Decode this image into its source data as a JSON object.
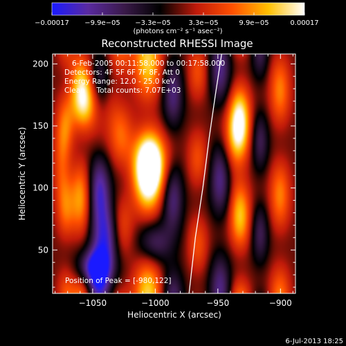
{
  "chart_data": {
    "type": "heatmap",
    "title": "Reconstructed RHESSI Image",
    "xlabel": "Heliocentric X (arcsec)",
    "ylabel": "Heliocentric Y (arcsec)",
    "xlim": [
      -1082,
      -888
    ],
    "ylim": [
      15,
      208
    ],
    "xticks": [
      -1050,
      -1000,
      -950,
      -900
    ],
    "xtick_labels": [
      "−1050",
      "−1000",
      "−950",
      "−900"
    ],
    "yticks": [
      50,
      100,
      150,
      200
    ],
    "ytick_labels": [
      "50",
      "100",
      "150",
      "200"
    ],
    "colorbar": {
      "min": -0.00017,
      "max": 0.00017,
      "tick_labels": [
        "−0.00017",
        "−9.9e−05",
        "−3.3e−05",
        "3.3e−05",
        "9.9e−05",
        "0.00017"
      ],
      "unit_label": "(photons cm⁻² s⁻¹ asec⁻²)",
      "colors": [
        "#1a1aff",
        "#5a2aa0",
        "#3a1a4a",
        "#000000",
        "#c01a0a",
        "#ff5000",
        "#ffc000",
        "#ffffff"
      ]
    },
    "info_lines": [
      "6-Feb-2005 00:11:58.000 to 00:17:58.000",
      "Detectors: 4F 5F 6F 7F 8F, Att 0",
      "Energy Range: 12.0 - 25.0 keV",
      "Clean     Total counts: 7.07E+03"
    ],
    "peak_label": "Position of Peak = [-980,122]",
    "peak": [
      -980,
      122
    ],
    "limb_curve": [
      [
        -973,
        15
      ],
      [
        -968,
        60
      ],
      [
        -962,
        100
      ],
      [
        -957,
        140
      ],
      [
        -952,
        175
      ],
      [
        -947,
        208
      ]
    ],
    "stripes": [
      {
        "x": -1072,
        "sx": 5,
        "amp": 0.45,
        "phase": 0.5,
        "period": 70
      },
      {
        "x": -1060,
        "sx": 6,
        "amp": 0.75,
        "phase": 1.5,
        "period": 90
      },
      {
        "x": -1045,
        "sx": 6,
        "amp": -0.85,
        "phase": 0.0,
        "period": 80
      },
      {
        "x": -1028,
        "sx": 7,
        "amp": 0.55,
        "phase": 2.2,
        "period": 75
      },
      {
        "x": -1006,
        "sx": 8,
        "amp": 0.95,
        "phase": 0.7,
        "period": 95
      },
      {
        "x": -986,
        "sx": 6,
        "amp": -0.7,
        "phase": 1.1,
        "period": 85
      },
      {
        "x": -966,
        "sx": 6,
        "amp": 0.45,
        "phase": 3.0,
        "period": 70
      },
      {
        "x": -948,
        "sx": 6,
        "amp": -0.75,
        "phase": 0.4,
        "period": 90
      },
      {
        "x": -932,
        "sx": 6,
        "amp": 0.9,
        "phase": 1.8,
        "period": 80
      },
      {
        "x": -916,
        "sx": 5,
        "amp": -0.55,
        "phase": 2.6,
        "period": 75
      },
      {
        "x": -900,
        "sx": 6,
        "amp": 0.65,
        "phase": 0.9,
        "period": 85
      }
    ],
    "blobs": [
      {
        "x": -1004,
        "y": 120,
        "sx": 9,
        "sy": 18,
        "amp": 1.2
      },
      {
        "x": -1050,
        "y": 170,
        "sx": 10,
        "sy": 16,
        "amp": 0.9
      },
      {
        "x": -1040,
        "y": 60,
        "sx": 8,
        "sy": 20,
        "amp": -1.1
      },
      {
        "x": -1050,
        "y": 35,
        "sx": 9,
        "sy": 10,
        "amp": -0.9
      },
      {
        "x": -1000,
        "y": 55,
        "sx": 10,
        "sy": 12,
        "amp": -0.6
      },
      {
        "x": -935,
        "y": 140,
        "sx": 7,
        "sy": 20,
        "amp": 0.7
      },
      {
        "x": -1075,
        "y": 120,
        "sx": 5,
        "sy": 25,
        "amp": 0.5
      }
    ]
  },
  "timestamp": "6-Jul-2013 18:25"
}
